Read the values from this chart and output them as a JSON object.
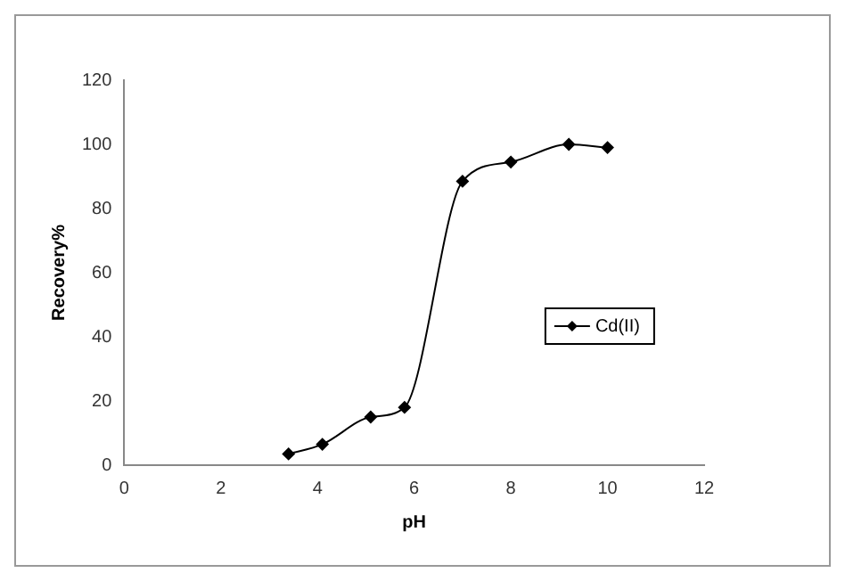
{
  "chart_data": {
    "type": "line",
    "xlabel": "pH",
    "ylabel": "Recovery%",
    "x": [
      3.4,
      4.1,
      5.1,
      5.8,
      7,
      8,
      9.2,
      10
    ],
    "series": [
      {
        "name": "Cd(II)",
        "color": "#000000",
        "values": [
          3.5,
          6.5,
          15,
          18,
          88.5,
          94.5,
          100,
          99
        ]
      }
    ],
    "xlim": [
      0,
      12
    ],
    "xticks": [
      0,
      2,
      4,
      6,
      8,
      10,
      12
    ],
    "ylim": [
      0,
      120
    ],
    "yticks": [
      0,
      20,
      40,
      60,
      80,
      100,
      120
    ],
    "grid": false,
    "legend": "right",
    "marker": "diamond",
    "line_style": "solid"
  }
}
